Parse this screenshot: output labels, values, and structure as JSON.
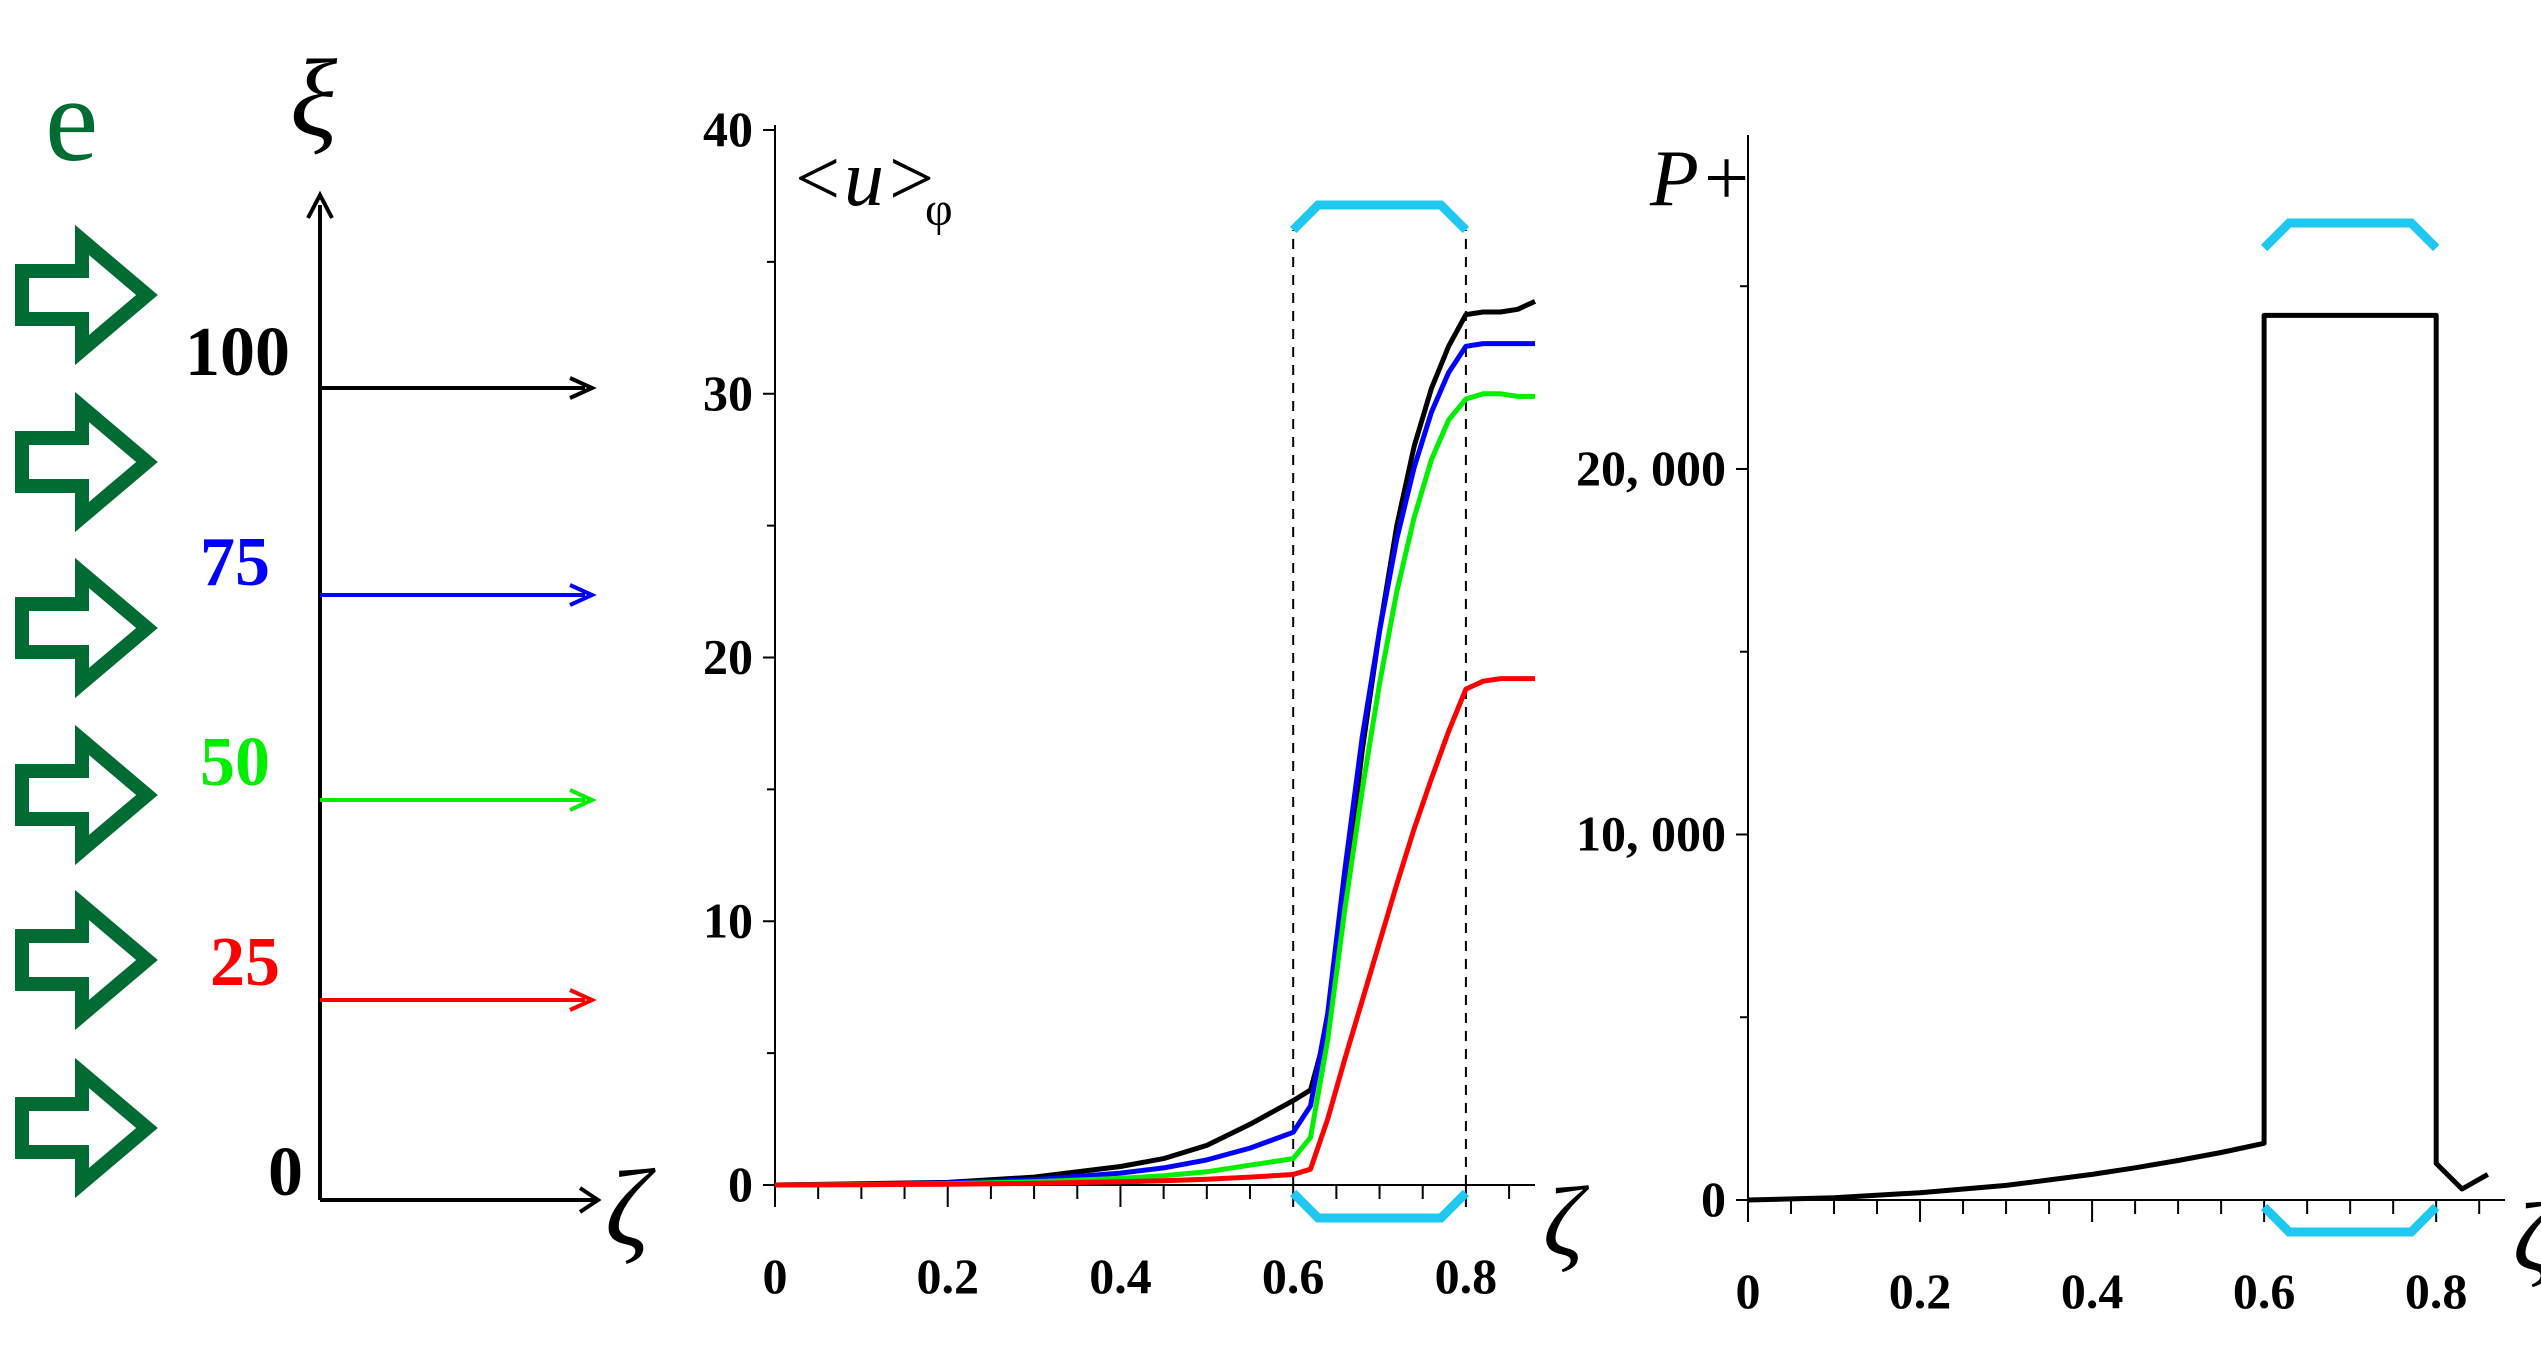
{
  "colors": {
    "black": "#000000",
    "blue": "#0000ff",
    "green": "#00ee00",
    "red": "#ff0000",
    "cyan": "#1ec8f0",
    "arrow_green": "#006b33"
  },
  "schematic": {
    "label_e": "e",
    "xi_label": "ξ",
    "zeta_label": "ζ",
    "levels": [
      {
        "label": "100",
        "color": "#000000"
      },
      {
        "label": "75",
        "color": "#0000ff"
      },
      {
        "label": "50",
        "color": "#00ee00"
      },
      {
        "label": "25",
        "color": "#ff0000"
      },
      {
        "label": "0",
        "color": "#000000"
      }
    ],
    "arrow_icon": "block-arrow-right-icon"
  },
  "chart_data": [
    {
      "type": "line",
      "title": "<u>",
      "title_subscript": "φ",
      "xlabel": "ζ",
      "ylabel": "",
      "xlim": [
        0,
        0.88
      ],
      "ylim": [
        0,
        40
      ],
      "x_ticks": [
        "0",
        "0.2",
        "0.4",
        "0.6",
        "0.8"
      ],
      "y_ticks": [
        "0",
        "10",
        "20",
        "30",
        "40"
      ],
      "region": [
        0.6,
        0.8
      ],
      "series": [
        {
          "name": "100",
          "color": "#000000",
          "x": [
            0,
            0.1,
            0.2,
            0.3,
            0.4,
            0.45,
            0.5,
            0.55,
            0.6,
            0.62,
            0.64,
            0.66,
            0.68,
            0.7,
            0.72,
            0.74,
            0.76,
            0.78,
            0.8,
            0.82,
            0.84,
            0.86,
            0.88
          ],
          "y": [
            0,
            0.05,
            0.1,
            0.3,
            0.7,
            1.0,
            1.5,
            2.3,
            3.2,
            3.6,
            6.0,
            11.0,
            16.5,
            21.0,
            25.0,
            28.0,
            30.2,
            31.8,
            33.0,
            33.1,
            33.1,
            33.2,
            33.5
          ]
        },
        {
          "name": "75",
          "color": "#0000ff",
          "x": [
            0,
            0.1,
            0.2,
            0.3,
            0.4,
            0.45,
            0.5,
            0.55,
            0.6,
            0.62,
            0.64,
            0.66,
            0.68,
            0.7,
            0.72,
            0.74,
            0.76,
            0.78,
            0.8,
            0.82,
            0.84,
            0.86,
            0.88
          ],
          "y": [
            0,
            0.03,
            0.08,
            0.2,
            0.45,
            0.65,
            0.95,
            1.4,
            2.0,
            3.0,
            6.5,
            12.0,
            17.0,
            21.0,
            24.5,
            27.2,
            29.3,
            30.8,
            31.8,
            31.9,
            31.9,
            31.9,
            31.9
          ]
        },
        {
          "name": "50",
          "color": "#00ee00",
          "x": [
            0,
            0.1,
            0.2,
            0.3,
            0.4,
            0.45,
            0.5,
            0.55,
            0.6,
            0.62,
            0.64,
            0.66,
            0.68,
            0.7,
            0.72,
            0.74,
            0.76,
            0.78,
            0.8,
            0.82,
            0.84,
            0.86,
            0.88
          ],
          "y": [
            0,
            0.02,
            0.05,
            0.12,
            0.25,
            0.35,
            0.5,
            0.75,
            1.0,
            1.8,
            5.5,
            10.5,
            15.0,
            19.0,
            22.5,
            25.3,
            27.5,
            29.0,
            29.8,
            30.0,
            30.0,
            29.9,
            29.9
          ]
        },
        {
          "name": "25",
          "color": "#ff0000",
          "x": [
            0,
            0.1,
            0.2,
            0.3,
            0.4,
            0.45,
            0.5,
            0.55,
            0.6,
            0.62,
            0.64,
            0.66,
            0.68,
            0.7,
            0.72,
            0.74,
            0.76,
            0.78,
            0.8,
            0.82,
            0.84,
            0.86,
            0.88
          ],
          "y": [
            0,
            0.01,
            0.03,
            0.06,
            0.12,
            0.16,
            0.22,
            0.3,
            0.4,
            0.6,
            2.5,
            4.8,
            7.0,
            9.2,
            11.4,
            13.5,
            15.4,
            17.2,
            18.8,
            19.1,
            19.2,
            19.2,
            19.2
          ]
        }
      ]
    },
    {
      "type": "line",
      "title": "P+",
      "xlabel": "ζ",
      "ylabel": "",
      "xlim": [
        0,
        0.88
      ],
      "ylim": [
        0,
        29000
      ],
      "x_ticks": [
        "0",
        "0.2",
        "0.4",
        "0.6",
        "0.8"
      ],
      "y_ticks": [
        "0",
        "10, 000",
        "20, 000"
      ],
      "y_tick_values": [
        0,
        10000,
        20000
      ],
      "minor_y_ticks": [
        5000,
        15000,
        25000
      ],
      "region": [
        0.6,
        0.8
      ],
      "series": [
        {
          "name": "P+",
          "color": "#000000",
          "x": [
            0,
            0.1,
            0.2,
            0.3,
            0.4,
            0.45,
            0.5,
            0.55,
            0.6,
            0.6,
            0.8,
            0.8,
            0.83,
            0.86
          ],
          "y": [
            0,
            60,
            200,
            400,
            700,
            880,
            1080,
            1300,
            1550,
            24200,
            24200,
            1000,
            300,
            700
          ]
        }
      ]
    }
  ]
}
